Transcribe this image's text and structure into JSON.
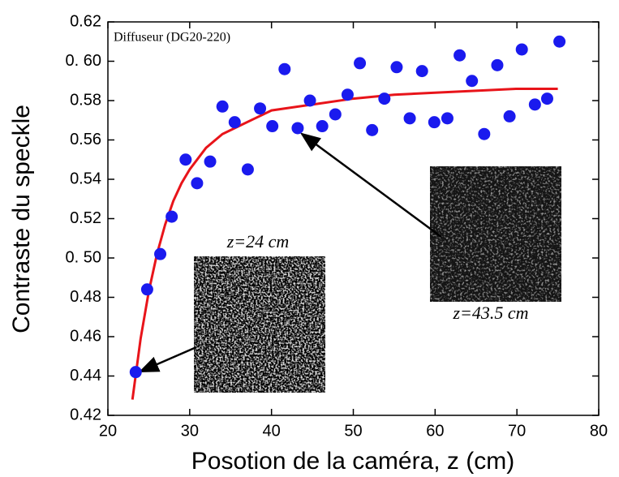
{
  "chart_data": {
    "type": "scatter",
    "xlabel": "Posotion de la caméra, z (cm)",
    "ylabel": "Contraste du speckle",
    "xlim": [
      20,
      80
    ],
    "xticks": [
      20,
      30,
      40,
      50,
      60,
      70,
      80
    ],
    "ylim": [
      0.42,
      0.62
    ],
    "yticks": [
      0.42,
      0.44,
      0.46,
      0.48,
      {
        "value": 0.5,
        "label": "0. 50"
      },
      0.52,
      0.54,
      0.56,
      0.58,
      {
        "value": 0.6,
        "label": "0. 60"
      },
      0.62
    ],
    "annotations": [
      "Diffuseur (DG20-220)",
      "z=24 cm",
      "z=43.5 cm"
    ],
    "series": [
      {
        "type": "scatter",
        "color": "#1a1aee",
        "x": [
          23.4,
          24.8,
          26.4,
          27.8,
          29.5,
          30.9,
          32.5,
          34.0,
          35.5,
          37.1,
          38.6,
          40.1,
          41.6,
          43.2,
          44.7,
          46.2,
          47.8,
          49.3,
          50.8,
          52.3,
          53.8,
          55.3,
          56.9,
          58.4,
          59.9,
          61.5,
          63.0,
          64.5,
          66.0,
          67.6,
          69.1,
          70.6,
          72.2,
          73.7,
          75.2
        ],
        "values": [
          0.442,
          0.484,
          0.502,
          0.521,
          0.55,
          0.538,
          0.549,
          0.577,
          0.569,
          0.545,
          0.576,
          0.567,
          0.596,
          0.566,
          0.58,
          0.567,
          0.573,
          0.583,
          0.599,
          0.565,
          0.581,
          0.597,
          0.571,
          0.595,
          0.569,
          0.571,
          0.603,
          0.59,
          0.563,
          0.598,
          0.572,
          0.606,
          0.578,
          0.581,
          0.61
        ]
      },
      {
        "type": "line",
        "color": "#e8141a",
        "x": [
          23,
          24,
          25,
          26,
          27,
          28,
          29,
          30,
          32,
          34,
          36,
          38,
          40,
          45,
          50,
          55,
          60,
          65,
          70,
          75
        ],
        "values": [
          0.428,
          0.459,
          0.483,
          0.502,
          0.517,
          0.529,
          0.538,
          0.545,
          0.556,
          0.563,
          0.567,
          0.571,
          0.575,
          0.578,
          0.581,
          0.583,
          0.584,
          0.585,
          0.586,
          0.586
        ]
      }
    ]
  }
}
